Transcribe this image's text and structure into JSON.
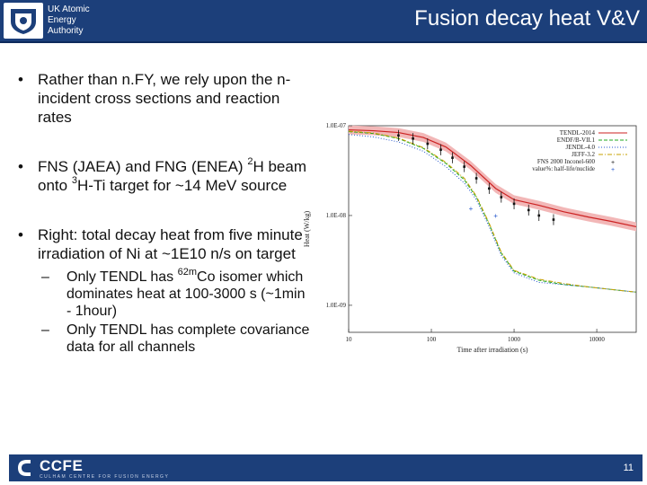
{
  "header": {
    "org_lines": [
      "UK Atomic",
      "Energy",
      "Authority"
    ],
    "title": "Fusion decay heat V&V"
  },
  "bullets": [
    {
      "parts": [
        {
          "t": "Rather than n.FY, we rely upon the n-incident cross sections and reaction rates"
        }
      ]
    },
    {
      "parts": [
        {
          "t": "FNS (JAEA) and FNG (ENEA) "
        },
        {
          "sup": "2"
        },
        {
          "t": "H beam onto "
        },
        {
          "sup": "3"
        },
        {
          "t": "H-Ti target for ~14 MeV source"
        }
      ]
    },
    {
      "parts": [
        {
          "t": "Right: total decay heat from five minute irradiation of Ni at ~1E10 n/s on target"
        }
      ],
      "subs": [
        {
          "parts": [
            {
              "t": "Only TENDL has "
            },
            {
              "sup": "62m"
            },
            {
              "t": "Co isomer which dominates heat at 100-3000 s (~1min - 1hour)"
            }
          ]
        },
        {
          "parts": [
            {
              "t": "Only TENDL has complete covariance data for all channels"
            }
          ]
        }
      ]
    }
  ],
  "chart_data": {
    "type": "line",
    "xlabel": "Time after irradiation (s)",
    "ylabel": "Heat (W/kg)",
    "x_scale": "log",
    "y_scale": "log",
    "xlim": [
      10,
      30000
    ],
    "ylim": [
      5e-10,
      1e-07
    ],
    "x_ticks": [
      "10",
      "100",
      "1000",
      "10000"
    ],
    "y_ticks": [
      "1.0E-07",
      "1.0E-08",
      "1.0E-09"
    ],
    "legend_position": "top-right",
    "series": [
      {
        "name": "TENDL-2014",
        "color": "#cc2222",
        "style": "solid",
        "x": [
          10,
          20,
          40,
          80,
          150,
          300,
          600,
          1000,
          2000,
          4000,
          8000,
          15000,
          30000
        ],
        "y": [
          9e-08,
          8.8e-08,
          8.4e-08,
          7.4e-08,
          5.8e-08,
          3.6e-08,
          2e-08,
          1.5e-08,
          1.3e-08,
          1.1e-08,
          9.6e-09,
          8.6e-09,
          7.5e-09
        ]
      },
      {
        "name": "ENDF/B-VII.1",
        "color": "#22aa22",
        "style": "dash",
        "x": [
          10,
          20,
          40,
          80,
          150,
          250,
          350,
          500,
          700,
          1000,
          2000,
          4000,
          8000,
          15000,
          30000
        ],
        "y": [
          8.6e-08,
          8.2e-08,
          7.2e-08,
          5.6e-08,
          3.8e-08,
          2.5e-08,
          1.6e-08,
          8e-09,
          3.8e-09,
          2.4e-09,
          1.9e-09,
          1.7e-09,
          1.6e-09,
          1.5e-09,
          1.4e-09
        ]
      },
      {
        "name": "JENDL-4.0",
        "color": "#2255cc",
        "style": "dot",
        "x": [
          10,
          20,
          40,
          80,
          150,
          250,
          350,
          500,
          700,
          1000,
          2000,
          4000,
          8000,
          15000,
          30000
        ],
        "y": [
          8e-08,
          7.5e-08,
          6.6e-08,
          5.2e-08,
          3.5e-08,
          2.3e-08,
          1.5e-08,
          7.5e-09,
          3.6e-09,
          2.3e-09,
          1.8e-09,
          1.7e-09,
          1.6e-09,
          1.5e-09,
          1.4e-09
        ]
      },
      {
        "name": "JEFF-3.2",
        "color": "#c7a000",
        "style": "dashdot",
        "x": [
          10,
          20,
          40,
          80,
          150,
          250,
          350,
          500,
          700,
          1000,
          2000,
          4000,
          8000,
          15000,
          30000
        ],
        "y": [
          8.7e-08,
          8.3e-08,
          7.3e-08,
          5.7e-08,
          3.9e-08,
          2.6e-08,
          1.65e-08,
          8.2e-09,
          3.9e-09,
          2.45e-09,
          1.95e-09,
          1.75e-09,
          1.6e-09,
          1.5e-09,
          1.4e-09
        ]
      },
      {
        "name": "FNS 2000 Inconel-600",
        "color": "#111111",
        "style": "errorbar",
        "x": [
          40,
          60,
          90,
          130,
          180,
          250,
          350,
          500,
          700,
          1000,
          1500,
          2000,
          3000
        ],
        "y": [
          7.8e-08,
          7.2e-08,
          6.3e-08,
          5.4e-08,
          4.4e-08,
          3.5e-08,
          2.6e-08,
          2e-08,
          1.6e-08,
          1.35e-08,
          1.15e-08,
          1e-08,
          9e-09
        ]
      },
      {
        "name": "value%: half-life/nuclide",
        "color": "#2255cc",
        "style": "marker",
        "x": [
          300,
          600
        ],
        "y": [
          1.2e-08,
          1e-08
        ]
      }
    ]
  },
  "footer": {
    "logo_text": "CCFE",
    "logo_subtext": "CULHAM CENTRE FOR FUSION ENERGY",
    "page_number": "11",
    "accent_color": "#1c3f7a"
  }
}
